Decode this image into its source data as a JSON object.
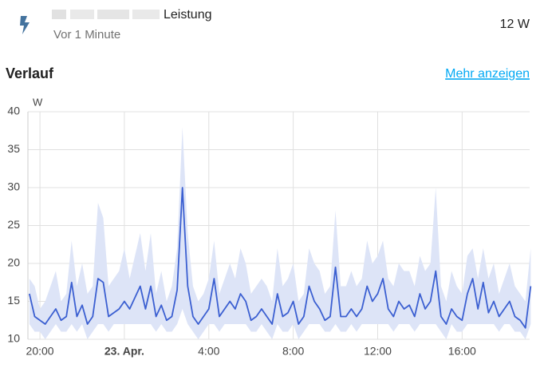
{
  "header": {
    "title": "Leistung",
    "subtitle": "Vor 1 Minute",
    "state": "12 W"
  },
  "section": {
    "title": "Verlauf",
    "link": "Mehr anzeigen"
  },
  "chart_data": {
    "type": "line",
    "y_unit": "W",
    "x": [
      -4.5,
      -4.25,
      -4,
      -3.75,
      -3.5,
      -3.25,
      -3,
      -2.75,
      -2.5,
      -2.25,
      -2,
      -1.75,
      -1.5,
      -1.25,
      -1,
      -0.75,
      -0.5,
      -0.25,
      0,
      0.25,
      0.5,
      0.75,
      1,
      1.25,
      1.5,
      1.75,
      2,
      2.25,
      2.5,
      2.75,
      3,
      3.25,
      3.5,
      3.75,
      4,
      4.25,
      4.5,
      4.75,
      5,
      5.25,
      5.5,
      5.75,
      6,
      6.25,
      6.5,
      6.75,
      7,
      7.25,
      7.5,
      7.75,
      8,
      8.25,
      8.5,
      8.75,
      9,
      9.25,
      9.5,
      9.75,
      10,
      10.25,
      10.5,
      10.75,
      11,
      11.25,
      11.5,
      11.75,
      12,
      12.25,
      12.5,
      12.75,
      13,
      13.25,
      13.5,
      13.75,
      14,
      14.25,
      14.5,
      14.75,
      15,
      15.25,
      15.5,
      15.75,
      16,
      16.25,
      16.5,
      16.75,
      17,
      17.25,
      17.5,
      17.75,
      18,
      18.25,
      18.5,
      18.75,
      19,
      19.25
    ],
    "series": [
      {
        "color": "#3b5fd1",
        "values": [
          16,
          13,
          12.5,
          12,
          13,
          14,
          12.5,
          13,
          17.5,
          13,
          14.5,
          12,
          13,
          18,
          17.5,
          13,
          13.5,
          14,
          15,
          14,
          15.5,
          17,
          14,
          17,
          13,
          14.5,
          12.5,
          13,
          16.5,
          30,
          17,
          13,
          12,
          13,
          14,
          18,
          13,
          14,
          15,
          14,
          16,
          15,
          12.5,
          13,
          14,
          13,
          12,
          16,
          13,
          13.5,
          15,
          12,
          13,
          17,
          15,
          14,
          12.5,
          13,
          19.5,
          13,
          13,
          14,
          13,
          14,
          17,
          15,
          16,
          18,
          14,
          13,
          15,
          14,
          14.5,
          13,
          16,
          14,
          15,
          19,
          13,
          12,
          14,
          13,
          12.5,
          16,
          18,
          14,
          17.5,
          13.5,
          15,
          13,
          14,
          15,
          13,
          12.5,
          11.5,
          17
        ]
      }
    ],
    "band": {
      "color": "#dde4f7",
      "max": [
        18,
        17,
        14,
        15,
        17,
        19,
        15,
        16,
        23,
        17,
        20,
        16,
        17,
        28,
        26,
        17,
        18,
        19,
        22,
        18,
        21,
        24,
        19,
        24,
        16,
        19,
        15,
        17,
        22,
        38,
        24,
        17,
        15,
        16,
        18,
        23,
        16,
        18,
        20,
        18,
        22,
        20,
        16,
        17,
        18,
        17,
        15,
        22,
        17,
        18,
        20,
        15,
        16,
        22,
        20,
        19,
        16,
        17,
        27,
        17,
        17,
        19,
        17,
        18,
        23,
        20,
        21,
        23,
        18,
        17,
        20,
        19,
        19,
        17,
        21,
        19,
        20,
        30,
        17,
        15,
        19,
        17,
        16,
        21,
        22,
        18,
        22,
        18,
        20,
        16,
        18,
        20,
        17,
        16,
        15,
        22
      ],
      "min": [
        12,
        11,
        11,
        10,
        11,
        12,
        11,
        11,
        12,
        11,
        12,
        10,
        11,
        12,
        12,
        11,
        12,
        12,
        12,
        12,
        12,
        12,
        12,
        12,
        11,
        12,
        11,
        11,
        12,
        14,
        12,
        11,
        10,
        11,
        12,
        12,
        11,
        12,
        12,
        12,
        12,
        12,
        11,
        11,
        12,
        11,
        10,
        12,
        11,
        11,
        12,
        10,
        11,
        12,
        12,
        12,
        11,
        11,
        12,
        11,
        11,
        12,
        11,
        12,
        12,
        12,
        12,
        12,
        12,
        11,
        12,
        12,
        12,
        11,
        12,
        12,
        12,
        12,
        11,
        10,
        12,
        11,
        11,
        12,
        12,
        12,
        12,
        12,
        12,
        11,
        12,
        12,
        11,
        11,
        10,
        12
      ]
    },
    "xlim": [
      -4.57,
      19.2
    ],
    "xticks": [
      {
        "value": -4,
        "label": "20:00"
      },
      {
        "value": 0,
        "label": "23. Apr."
      },
      {
        "value": 4,
        "label": "4:00"
      },
      {
        "value": 8,
        "label": "8:00"
      },
      {
        "value": 12,
        "label": "12:00"
      },
      {
        "value": 16,
        "label": "16:00"
      }
    ],
    "ylim": [
      10,
      40
    ],
    "yticks": [
      10,
      15,
      20,
      25,
      30,
      35,
      40
    ],
    "grid": true
  }
}
